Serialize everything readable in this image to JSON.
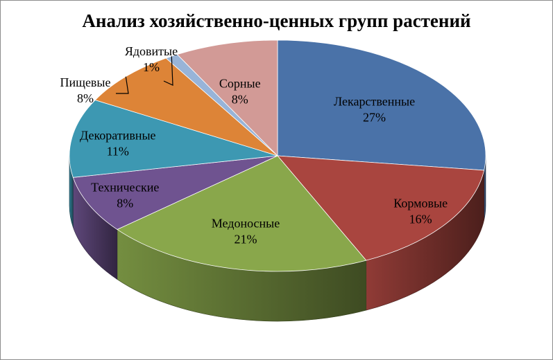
{
  "chart_data": {
    "type": "pie",
    "style": "3d",
    "title": "Анализ хозяйственно-ценных групп растений",
    "start_angle_deg": 90,
    "direction": "clockwise",
    "legend": "none",
    "categories": [
      "Лекарственные",
      "Кормовые",
      "Медоносные",
      "Технические",
      "Декоративные",
      "Пищевые",
      "Ядовитые",
      "Сорные"
    ],
    "values": [
      27,
      16,
      21,
      8,
      11,
      8,
      1,
      8
    ],
    "data_labels": [
      "27%",
      "16%",
      "21%",
      "8%",
      "11%",
      "8%",
      "1%",
      "8%"
    ],
    "colors": [
      "#4a72a8",
      "#a9453f",
      "#89a74b",
      "#6f5390",
      "#3d98b2",
      "#dd8437",
      "#98b4d8",
      "#d29a96"
    ]
  }
}
